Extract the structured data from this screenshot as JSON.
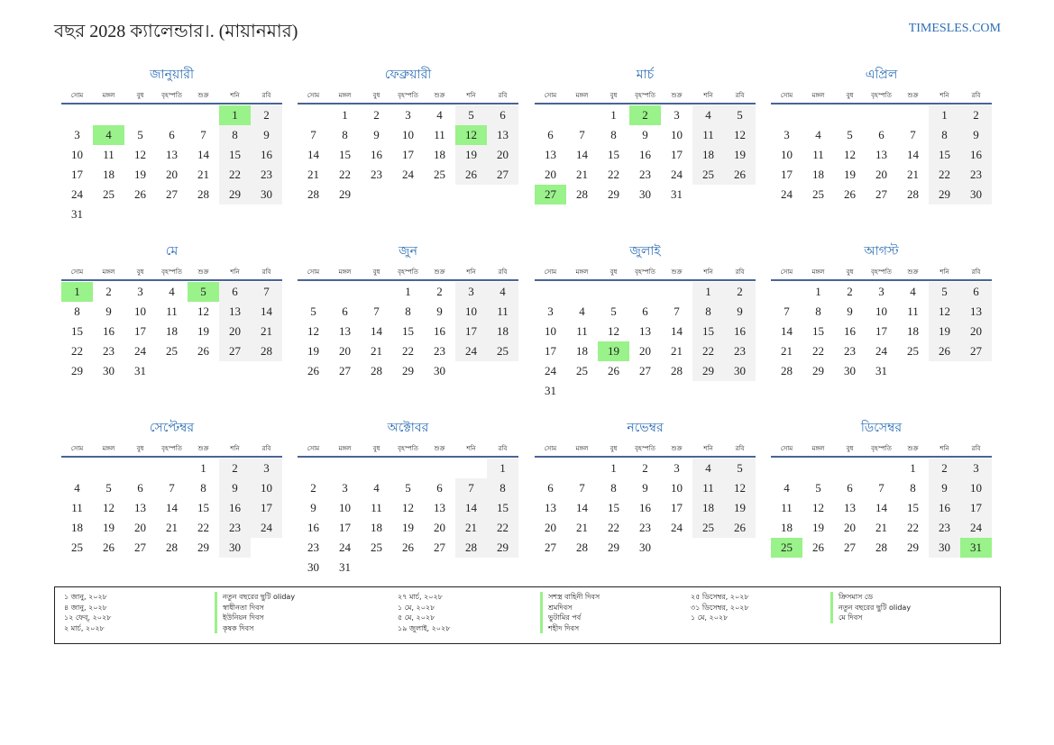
{
  "header": {
    "title": "বছর 2028 ক্যালেন্ডার।. (মায়ানমার)",
    "brand": "TIMESLES.COM"
  },
  "colors": {
    "accent": "#2a6db5",
    "holiday": "#9af28a",
    "weekend": "#f2f2f2",
    "rule": "#4a6496"
  },
  "year": 2028,
  "weekdays": [
    "সোম",
    "মঙ্গল",
    "বুধ",
    "বৃহস্পতি",
    "শুক্র",
    "শনি",
    "রবি"
  ],
  "months": [
    {
      "name": "জানুয়ারী",
      "days": 31,
      "holidays": [
        1,
        4
      ]
    },
    {
      "name": "ফেব্রুয়ারী",
      "days": 29,
      "holidays": [
        12
      ]
    },
    {
      "name": "মার্চ",
      "days": 31,
      "holidays": [
        2,
        27
      ]
    },
    {
      "name": "এপ্রিল",
      "days": 30,
      "holidays": []
    },
    {
      "name": "মে",
      "days": 31,
      "holidays": [
        1,
        5
      ]
    },
    {
      "name": "জুন",
      "days": 30,
      "holidays": []
    },
    {
      "name": "জুলাই",
      "days": 31,
      "holidays": [
        19
      ]
    },
    {
      "name": "আগস্ট",
      "days": 31,
      "holidays": []
    },
    {
      "name": "সেপ্টেম্বর",
      "days": 30,
      "holidays": []
    },
    {
      "name": "অক্টোবর",
      "days": 31,
      "holidays": []
    },
    {
      "name": "নভেম্বর",
      "days": 30,
      "holidays": []
    },
    {
      "name": "ডিসেম্বর",
      "days": 31,
      "holidays": [
        25,
        31
      ]
    }
  ],
  "legend": [
    {
      "dates": [
        "১ জানু, ২০২৮",
        "৪ জানু, ২০২৮",
        "১২ ফেব্, ২০২৮",
        "২ মার্চ, ২০২৮"
      ],
      "names": [
        "নতুন বছরের ছুটি oliday",
        "স্বাধীনতা দিবস",
        "ইউনিয়ন দিবস",
        "কৃষক দিবস"
      ]
    },
    {
      "dates": [
        "২৭ মার্চ, ২০২৮",
        "১ মে, ২০২৮",
        "৫ মে, ২০২৮",
        "১৯ জুলাই, ২০২৮"
      ],
      "names": [
        "সশস্ত্র বাহিনী দিবস",
        "শ্রমদিবস",
        "ভুটামির পর্ব",
        "শহীদ দিবস"
      ]
    },
    {
      "dates": [
        "২৫ ডিসেম্বর, ২০২৮",
        "৩১ ডিসেম্বর, ২০২৮",
        "১ মে, ২০২৮"
      ],
      "names": [
        "ক্রিসমাস ডে",
        "নতুন বছরের ছুটি oliday",
        "মে দিবস"
      ]
    }
  ]
}
